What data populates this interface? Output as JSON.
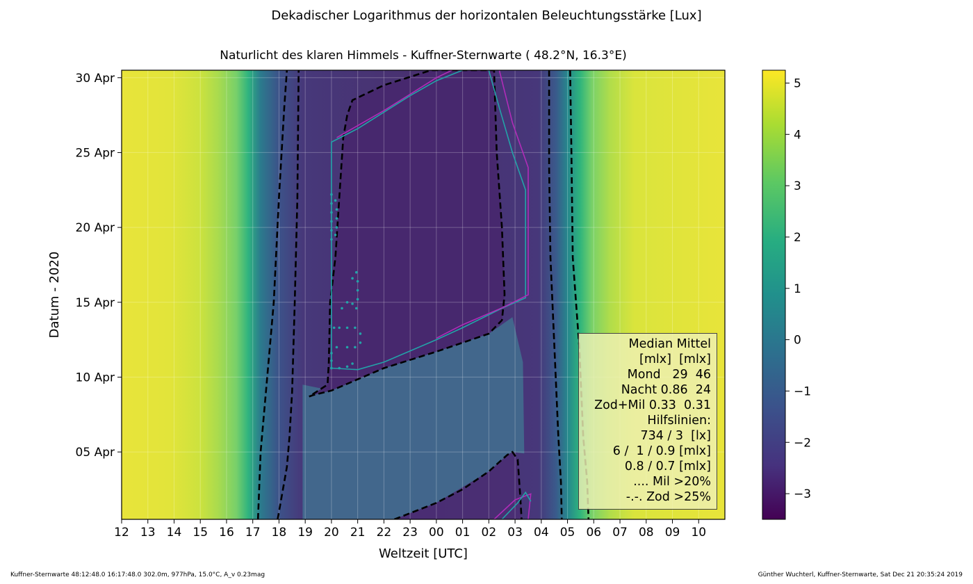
{
  "suptitle": "Dekadischer Logarithmus der horizontalen Beleuchtungsstärke [Lux]",
  "chart_data": {
    "type": "heatmap",
    "title": "Naturlicht des klaren Himmels - Kuffner-Sternwarte ( 48.2°N, 16.3°E)",
    "xlabel": "Weltzeit [UTC]",
    "ylabel": "Datum - 2020",
    "x_tick_labels": [
      "12",
      "13",
      "14",
      "15",
      "16",
      "17",
      "18",
      "19",
      "20",
      "21",
      "22",
      "23",
      "00",
      "01",
      "02",
      "03",
      "04",
      "05",
      "06",
      "07",
      "08",
      "09",
      "10"
    ],
    "x_range_hours": [
      12,
      35
    ],
    "y_tick_labels": [
      "30 Apr",
      "25 Apr",
      "20 Apr",
      "15 Apr",
      "10 Apr",
      "05 Apr"
    ],
    "y_tick_days": [
      30,
      25,
      20,
      15,
      10,
      5
    ],
    "y_range_days": [
      0.5,
      30.5
    ],
    "colorbar_ticks": [
      5,
      4,
      3,
      2,
      1,
      0,
      -1,
      -2,
      -3
    ],
    "colorbar_range": [
      -3.5,
      5.25
    ],
    "colormap": "viridis",
    "grid": true,
    "legend_position": "lower right",
    "contour_dashed_outer": [
      [
        17.2,
        0.5
      ],
      [
        17.3,
        5.0
      ],
      [
        17.5,
        9.0
      ],
      [
        17.8,
        15.0
      ],
      [
        18.0,
        22.0
      ],
      [
        18.2,
        28.0
      ],
      [
        18.3,
        30.5
      ]
    ],
    "contour_dashed_inner_left": [
      [
        17.95,
        0.5
      ],
      [
        18.1,
        2.0
      ],
      [
        18.3,
        4.0
      ],
      [
        18.4,
        6.0
      ],
      [
        18.5,
        9.0
      ],
      [
        18.6,
        15.0
      ],
      [
        18.7,
        22.0
      ],
      [
        18.75,
        30.5
      ]
    ],
    "contour_dashed_inner_right": [
      [
        28.3,
        30.5
      ],
      [
        28.3,
        24.0
      ],
      [
        28.35,
        18.0
      ],
      [
        28.5,
        12.0
      ],
      [
        28.65,
        6.0
      ],
      [
        28.75,
        3.0
      ],
      [
        28.78,
        0.5
      ]
    ],
    "contour_dashed_outer_right": [
      [
        29.1,
        30.5
      ],
      [
        29.15,
        25.0
      ],
      [
        29.2,
        18.0
      ],
      [
        29.45,
        12.0
      ],
      [
        29.6,
        6.0
      ],
      [
        29.75,
        3.0
      ],
      [
        29.8,
        0.5
      ]
    ],
    "moon_contour_dashed": [
      [
        19.15,
        8.7
      ],
      [
        19.3,
        8.8
      ],
      [
        20.0,
        9.1
      ],
      [
        22.0,
        10.6
      ],
      [
        24.0,
        11.7
      ],
      [
        26.0,
        12.9
      ],
      [
        26.5,
        13.8
      ],
      [
        26.6,
        15.5
      ],
      [
        26.5,
        20.0
      ],
      [
        26.3,
        25.0
      ],
      [
        26.2,
        30.5
      ],
      [
        23.8,
        30.5
      ],
      [
        22.0,
        29.5
      ],
      [
        20.8,
        28.5
      ],
      [
        20.6,
        27.5
      ],
      [
        20.45,
        26.0
      ],
      [
        20.3,
        22.0
      ],
      [
        20.15,
        18.0
      ],
      [
        19.95,
        15.0
      ],
      [
        19.9,
        11.0
      ],
      [
        19.85,
        9.5
      ],
      [
        19.15,
        8.7
      ]
    ],
    "lower_night_dashed": [
      [
        22.4,
        0.5
      ],
      [
        24.0,
        1.6
      ],
      [
        25.0,
        2.5
      ],
      [
        26.0,
        3.7
      ],
      [
        26.7,
        4.8
      ],
      [
        26.9,
        5.0
      ],
      [
        27.1,
        4.5
      ],
      [
        27.2,
        2.0
      ],
      [
        27.25,
        0.5
      ]
    ],
    "legend_lines": [
      "Median Mittel",
      "[mlx]  [mlx]",
      "Mond   29  46",
      "Nacht 0.86  24",
      "Zod+Mil 0.33  0.31",
      "Hilfslinien:",
      "734 / 3  [lx]",
      "6 /  1 / 0.9 [mlx]",
      "0.8 / 0.7 [mlx]",
      ".... Mil >20%",
      "-.-. Zod >25%"
    ],
    "footer_left": "Kuffner-Sternwarte 48:12:48.0 16:17:48.0 302.0m,  977hPa, 15.0°C, A_v 0.23mag",
    "footer_right": "Günther Wuchterl, Kuffner-Sternwarte, Sat Dec 21 20:35:24 2019"
  },
  "colors": {
    "day": "#e8e43a",
    "night": "#4a2a6e",
    "moon_band": "#41668f",
    "teal_line": "#23a3a8",
    "magenta_line": "#b02cb8"
  }
}
